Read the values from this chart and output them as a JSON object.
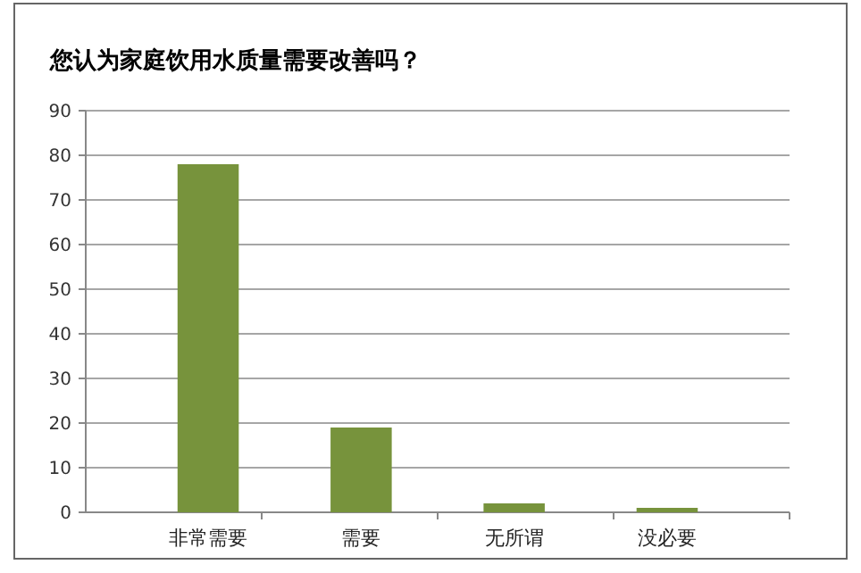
{
  "chart_data": {
    "type": "bar",
    "title": "您认为家庭饮用水质量需要改善吗？",
    "categories": [
      "非常需要",
      "需要",
      "无所谓",
      "没必要"
    ],
    "values": [
      78,
      19,
      2,
      1
    ],
    "color": "#77933c",
    "ylim": [
      0,
      90
    ],
    "yticks": [
      0,
      10,
      20,
      30,
      40,
      50,
      60,
      70,
      80,
      90
    ],
    "grid": "y"
  }
}
